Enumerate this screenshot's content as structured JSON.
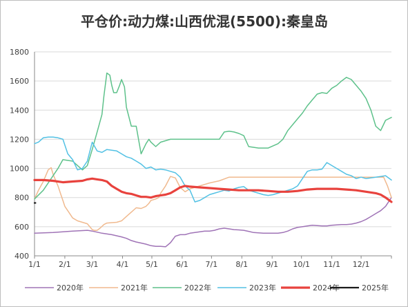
{
  "chart_data": {
    "type": "line",
    "title": "平仓价:动力煤:山西优混(5500):秦皇岛",
    "ylim": [
      400,
      1800
    ],
    "yticks": [
      "400",
      "600",
      "800",
      "1000",
      "1200",
      "1400",
      "1600",
      "1800"
    ],
    "xticks": [
      "1/1",
      "2/1",
      "3/1",
      "4/1",
      "5/1",
      "6/1",
      "7/1",
      "8/1",
      "9/1",
      "10/1",
      "11/1",
      "12/1"
    ],
    "x_unit": "day of year",
    "grid": "horizontal",
    "legend_position": "bottom",
    "series": [
      {
        "name": "2020年",
        "color": "#9f73b6",
        "width": 1.5,
        "x": [
          1,
          20,
          40,
          55,
          60,
          70,
          80,
          90,
          95,
          100,
          105,
          110,
          115,
          120,
          125,
          130,
          135,
          140,
          145,
          150,
          155,
          160,
          165,
          170,
          175,
          180,
          185,
          190,
          195,
          200,
          205,
          210,
          215,
          220,
          225,
          230,
          235,
          240,
          245,
          250,
          255,
          260,
          265,
          270,
          275,
          280,
          285,
          290,
          295,
          300,
          305,
          310,
          315,
          320,
          325,
          330,
          335,
          340,
          345,
          350,
          355,
          360,
          366
        ],
        "y": [
          555,
          560,
          570,
          575,
          570,
          555,
          545,
          530,
          520,
          505,
          495,
          488,
          480,
          470,
          465,
          465,
          462,
          490,
          535,
          545,
          545,
          555,
          560,
          565,
          570,
          570,
          575,
          585,
          590,
          585,
          580,
          578,
          575,
          568,
          560,
          558,
          555,
          555,
          555,
          555,
          560,
          570,
          585,
          595,
          600,
          605,
          610,
          608,
          605,
          605,
          610,
          612,
          615,
          615,
          618,
          625,
          635,
          650,
          670,
          690,
          710,
          740,
          800
        ]
      },
      {
        "name": "2021年",
        "color": "#f0b98e",
        "width": 1.5,
        "x": [
          1,
          5,
          10,
          15,
          18,
          20,
          25,
          28,
          30,
          32,
          36,
          40,
          45,
          50,
          55,
          60,
          62,
          65,
          68,
          72,
          75,
          80,
          85,
          90,
          95,
          100,
          105,
          110,
          115,
          118,
          120,
          125,
          128,
          130,
          135,
          140,
          145,
          150,
          155,
          160,
          170,
          180,
          190,
          200,
          210,
          220,
          240,
          260,
          280,
          300,
          320,
          340,
          358,
          362,
          366
        ],
        "y": [
          790,
          850,
          910,
          990,
          1005,
          960,
          880,
          820,
          780,
          740,
          700,
          660,
          640,
          630,
          620,
          580,
          575,
          575,
          590,
          615,
          625,
          628,
          630,
          640,
          670,
          700,
          730,
          725,
          740,
          760,
          780,
          790,
          800,
          830,
          880,
          945,
          935,
          870,
          840,
          860,
          880,
          900,
          915,
          940,
          940,
          940,
          940,
          940,
          940,
          940,
          940,
          940,
          940,
          880,
          800
        ]
      },
      {
        "name": "2022年",
        "color": "#5dc18a",
        "width": 1.5,
        "x": [
          1,
          10,
          20,
          25,
          30,
          35,
          40,
          45,
          50,
          55,
          60,
          65,
          70,
          72,
          75,
          78,
          80,
          82,
          85,
          88,
          90,
          93,
          95,
          100,
          105,
          110,
          115,
          118,
          120,
          125,
          130,
          135,
          140,
          150,
          160,
          170,
          180,
          190,
          195,
          200,
          205,
          210,
          215,
          220,
          230,
          240,
          250,
          255,
          260,
          265,
          270,
          275,
          280,
          285,
          290,
          295,
          300,
          305,
          310,
          315,
          320,
          325,
          330,
          335,
          340,
          345,
          350,
          355,
          360,
          366
        ],
        "y": [
          790,
          850,
          950,
          1000,
          1060,
          1055,
          1050,
          1020,
          990,
          1020,
          1130,
          1250,
          1370,
          1500,
          1655,
          1640,
          1570,
          1520,
          1520,
          1570,
          1610,
          1560,
          1420,
          1290,
          1290,
          1100,
          1170,
          1200,
          1180,
          1150,
          1180,
          1190,
          1200,
          1200,
          1200,
          1200,
          1200,
          1200,
          1250,
          1255,
          1250,
          1240,
          1225,
          1150,
          1140,
          1140,
          1170,
          1200,
          1260,
          1300,
          1340,
          1380,
          1430,
          1470,
          1510,
          1520,
          1515,
          1550,
          1570,
          1600,
          1625,
          1610,
          1570,
          1530,
          1480,
          1400,
          1290,
          1260,
          1330,
          1350
        ]
      },
      {
        "name": "2023年",
        "color": "#52c1e4",
        "width": 1.5,
        "x": [
          1,
          5,
          10,
          15,
          20,
          25,
          30,
          35,
          40,
          45,
          50,
          55,
          60,
          65,
          70,
          75,
          80,
          85,
          90,
          95,
          100,
          105,
          110,
          115,
          120,
          125,
          130,
          135,
          140,
          145,
          150,
          155,
          160,
          165,
          170,
          175,
          180,
          185,
          190,
          195,
          200,
          205,
          210,
          215,
          220,
          225,
          230,
          235,
          240,
          245,
          250,
          255,
          260,
          265,
          270,
          275,
          280,
          285,
          290,
          295,
          300,
          305,
          310,
          315,
          320,
          325,
          330,
          335,
          340,
          345,
          350,
          355,
          360,
          366
        ],
        "y": [
          1170,
          1180,
          1210,
          1215,
          1215,
          1210,
          1200,
          1100,
          1060,
          990,
          1000,
          1050,
          1180,
          1120,
          1110,
          1130,
          1125,
          1120,
          1100,
          1080,
          1070,
          1050,
          1030,
          1000,
          1010,
          990,
          995,
          990,
          980,
          970,
          940,
          880,
          850,
          770,
          780,
          800,
          820,
          830,
          840,
          850,
          845,
          860,
          870,
          875,
          850,
          840,
          830,
          820,
          815,
          820,
          830,
          840,
          850,
          860,
          880,
          930,
          980,
          990,
          990,
          995,
          1040,
          1020,
          1000,
          980,
          960,
          950,
          930,
          940,
          930,
          935,
          940,
          945,
          950,
          920
        ]
      },
      {
        "name": "2024年",
        "color": "#e8423d",
        "width": 3.2,
        "x": [
          1,
          10,
          20,
          30,
          40,
          50,
          55,
          60,
          65,
          70,
          75,
          80,
          85,
          90,
          95,
          100,
          105,
          110,
          115,
          120,
          125,
          130,
          135,
          140,
          145,
          150,
          155,
          160,
          170,
          180,
          190,
          200,
          210,
          220,
          230,
          240,
          250,
          260,
          270,
          280,
          290,
          300,
          310,
          320,
          330,
          340,
          350,
          355,
          360,
          366
        ],
        "y": [
          920,
          920,
          915,
          905,
          910,
          915,
          925,
          930,
          925,
          920,
          910,
          880,
          860,
          840,
          830,
          825,
          815,
          805,
          805,
          800,
          810,
          815,
          820,
          830,
          850,
          870,
          880,
          875,
          870,
          865,
          860,
          855,
          850,
          850,
          850,
          845,
          840,
          840,
          845,
          855,
          860,
          860,
          860,
          855,
          850,
          840,
          830,
          820,
          800,
          770
        ]
      },
      {
        "name": "2025年",
        "color": "#1a1a1a",
        "width": 2.2,
        "x": [
          1,
          2
        ],
        "y": [
          763,
          763
        ]
      }
    ]
  }
}
